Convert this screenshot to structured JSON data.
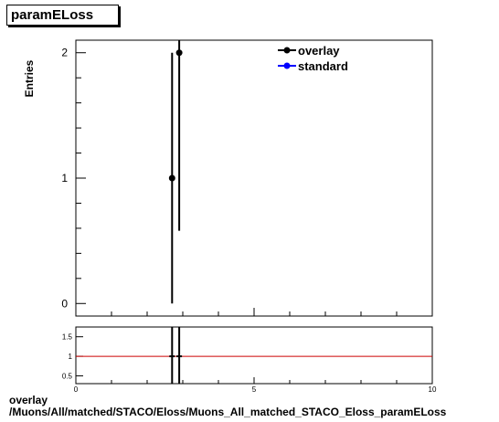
{
  "header": {
    "title": "paramELoss"
  },
  "footer": {
    "line1": "overlay",
    "line2": "/Muons/All/matched/STACO/Eloss/Muons_All_matched_STACO_Eloss_paramELoss"
  },
  "chart_data": [
    {
      "type": "scatter",
      "title": "paramELoss",
      "ylabel": "Entries",
      "xlabel": "",
      "xlim": [
        0,
        10
      ],
      "ylim": [
        -0.1,
        2.1
      ],
      "yticks": [
        0,
        1,
        2
      ],
      "legend": {
        "placement": "top-right",
        "entries": [
          "overlay",
          "standard"
        ]
      },
      "colors": {
        "overlay": "#000000",
        "standard": "#0000ff"
      },
      "series": [
        {
          "name": "overlay",
          "points": [
            {
              "x": 2.7,
              "y": 1,
              "yerr_low": 1,
              "yerr_high": 1
            },
            {
              "x": 2.9,
              "y": 2,
              "yerr_low": 1.42,
              "yerr_high": 1.42
            }
          ]
        },
        {
          "name": "standard",
          "points": []
        }
      ]
    },
    {
      "type": "line",
      "xlim": [
        0,
        10
      ],
      "ylim": [
        0.3,
        1.75
      ],
      "yticks": [
        0.5,
        1,
        1.5
      ],
      "yticklabels": [
        "0.5",
        "1",
        "1.5"
      ],
      "xticks": [
        0,
        5,
        10
      ],
      "xticklabels": [
        "0",
        "5",
        "10"
      ],
      "reference_line": {
        "y": 1,
        "color": "#cc0000"
      },
      "ratio_points": [
        {
          "x": 2.7,
          "y": 1
        },
        {
          "x": 2.9,
          "y": 1
        }
      ]
    }
  ]
}
